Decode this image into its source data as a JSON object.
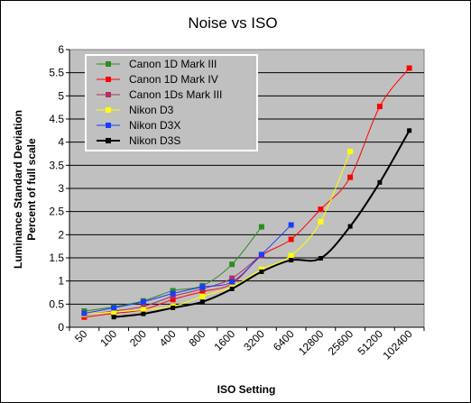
{
  "chart_data": {
    "type": "line",
    "title": "Noise vs ISO",
    "xlabel": "ISO Setting",
    "ylabel_lines": [
      "Luminance Standard Deviation",
      "Percent of full scale"
    ],
    "categories": [
      "50",
      "100",
      "200",
      "400",
      "800",
      "1600",
      "3200",
      "6400",
      "12800",
      "25600",
      "51200",
      "102400"
    ],
    "ylim": [
      0,
      6
    ],
    "yticks": [
      "0",
      "0.5",
      "1",
      "1.5",
      "2",
      "2.5",
      "3",
      "3.5",
      "4",
      "4.5",
      "5",
      "5.5",
      "6"
    ],
    "grid": true,
    "legend_position": "top-left",
    "series": [
      {
        "name": "Canon 1D Mark III",
        "color": "#2e8b22",
        "marker": "square",
        "points": [
          [
            0,
            0.35
          ],
          [
            1,
            0.44
          ],
          [
            2,
            0.57
          ],
          [
            3,
            0.79
          ],
          [
            4,
            0.9
          ],
          [
            5,
            1.36
          ],
          [
            6,
            2.17
          ]
        ]
      },
      {
        "name": "Canon 1D Mark IV",
        "color": "#ff0000",
        "marker": "square",
        "points": [
          [
            0,
            0.22
          ],
          [
            1,
            0.3
          ],
          [
            2,
            0.38
          ],
          [
            3,
            0.6
          ],
          [
            4,
            0.77
          ],
          [
            5,
            0.94
          ],
          [
            6,
            1.55
          ],
          [
            7,
            1.9
          ],
          [
            8,
            2.55
          ],
          [
            9,
            3.24
          ],
          [
            10,
            4.77
          ],
          [
            11,
            5.6
          ]
        ]
      },
      {
        "name": "Canon 1Ds Mark III",
        "color": "#b03060",
        "marker": "square",
        "points": [
          [
            0,
            0.27
          ],
          [
            1,
            0.35
          ],
          [
            2,
            0.45
          ],
          [
            3,
            0.67
          ],
          [
            4,
            0.83
          ],
          [
            5,
            1.06
          ],
          [
            6,
            1.57
          ]
        ]
      },
      {
        "name": "Nikon D3",
        "color": "#ffff00",
        "marker": "square",
        "points": [
          [
            0,
            0.28
          ],
          [
            1,
            0.33
          ],
          [
            2,
            0.38
          ],
          [
            3,
            0.45
          ],
          [
            4,
            0.67
          ],
          [
            5,
            0.87
          ],
          [
            6,
            1.25
          ],
          [
            7,
            1.55
          ],
          [
            8,
            2.28
          ],
          [
            9,
            3.8
          ]
        ]
      },
      {
        "name": "Nikon D3X",
        "color": "#1a3cff",
        "marker": "square",
        "points": [
          [
            0,
            0.3
          ],
          [
            1,
            0.42
          ],
          [
            2,
            0.55
          ],
          [
            3,
            0.73
          ],
          [
            4,
            0.87
          ],
          [
            5,
            0.98
          ],
          [
            6,
            1.57
          ],
          [
            7,
            2.21
          ]
        ]
      },
      {
        "name": "Nikon D3S",
        "color": "#000000",
        "marker": "square",
        "points": [
          [
            1,
            0.22
          ],
          [
            2,
            0.29
          ],
          [
            3,
            0.42
          ],
          [
            4,
            0.55
          ],
          [
            5,
            0.83
          ],
          [
            6,
            1.2
          ],
          [
            7,
            1.45
          ],
          [
            8,
            1.49
          ],
          [
            9,
            2.18
          ],
          [
            10,
            3.13
          ],
          [
            11,
            4.25
          ]
        ]
      }
    ]
  }
}
